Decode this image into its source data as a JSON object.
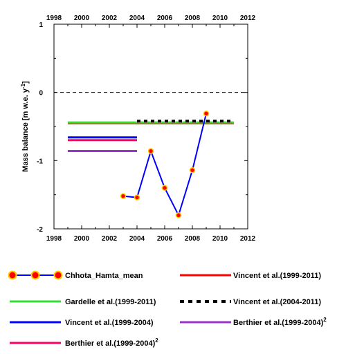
{
  "chart_data": {
    "type": "line",
    "ylabel": "Mass balance [m w.e. y",
    "ylabel_sup": "-1",
    "ylabel_end": "]",
    "xlim": [
      1998,
      2012
    ],
    "ylim": [
      -2,
      1
    ],
    "x_ticks": [
      1998,
      2000,
      2002,
      2004,
      2006,
      2008,
      2010,
      2012
    ],
    "x_tick_labels": [
      "1998",
      "2000",
      "2002",
      "2004",
      "2006",
      "2008",
      "2010",
      "2012"
    ],
    "y_ticks": [
      1,
      0,
      -1,
      -2
    ],
    "y_tick_labels": [
      "1",
      "0",
      "-1",
      "-2"
    ],
    "zero_line": true,
    "series": [
      {
        "name": "Chhota_Hamta_mean",
        "kind": "line-markers",
        "color": "#0000ff",
        "marker_fill": "#ff0000",
        "marker_edge": "#ffcc00",
        "x": [
          2003,
          2004,
          2005,
          2006,
          2007,
          2008,
          2009
        ],
        "y": [
          -1.52,
          -1.54,
          -0.86,
          -1.4,
          -1.8,
          -1.14,
          -0.31
        ]
      },
      {
        "name": "Vincent et al.(1999-2011)",
        "kind": "segment",
        "color": "#ff0000",
        "x": [
          1999,
          2011
        ],
        "y": [
          -0.45,
          -0.45
        ]
      },
      {
        "name": "Gardelle et al.(1999-2011)",
        "kind": "segment",
        "color": "#33dd33",
        "x": [
          1999,
          2011
        ],
        "y": [
          -0.44,
          -0.44
        ]
      },
      {
        "name": "Vincent et al.(2004-2011)",
        "kind": "dashed-segment",
        "color": "#000000",
        "x": [
          2004,
          2011
        ],
        "y": [
          -0.42,
          -0.42
        ]
      },
      {
        "name": "Vincent et al.(1999-2004)",
        "kind": "segment",
        "color": "#0000ff",
        "x": [
          1999,
          2004
        ],
        "y": [
          -0.66,
          -0.66
        ]
      },
      {
        "name": "Berthier et al.(1999-2004)",
        "name_sup": "2",
        "kind": "segment",
        "color": "#9933cc",
        "x": [
          1999,
          2004
        ],
        "y": [
          -0.86,
          -0.86
        ]
      },
      {
        "name": "Berthier et al.(1999-2004)",
        "name_sup": "2",
        "kind": "segment",
        "color": "#ff0066",
        "x": [
          1999,
          2004
        ],
        "y": [
          -0.7,
          -0.7
        ]
      }
    ]
  }
}
